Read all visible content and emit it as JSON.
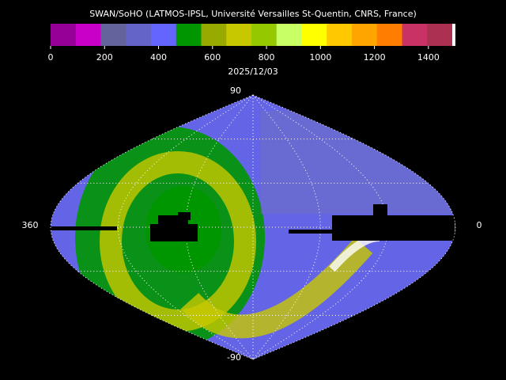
{
  "title": "SWAN/SoHO (LATMOS-IPSL, Université Versailles St-Quentin, CNRS, France)",
  "colorbar": {
    "colors": [
      "#960096",
      "#c800c8",
      "#64649c",
      "#6464c8",
      "#6464ff",
      "#009600",
      "#96aa00",
      "#c8c800",
      "#96c800",
      "#c8ff64",
      "#ffff00",
      "#ffc800",
      "#ffa500",
      "#ff7d00",
      "#c83264",
      "#aa3250"
    ],
    "lim": [
      0,
      1500
    ],
    "ticks": [
      0,
      200,
      400,
      600,
      800,
      1000,
      1200,
      1400
    ]
  },
  "date": "2025/12/03",
  "map": {
    "top_label": "90",
    "bottom_label": "-90",
    "left_label": "360",
    "right_label": "0"
  }
}
